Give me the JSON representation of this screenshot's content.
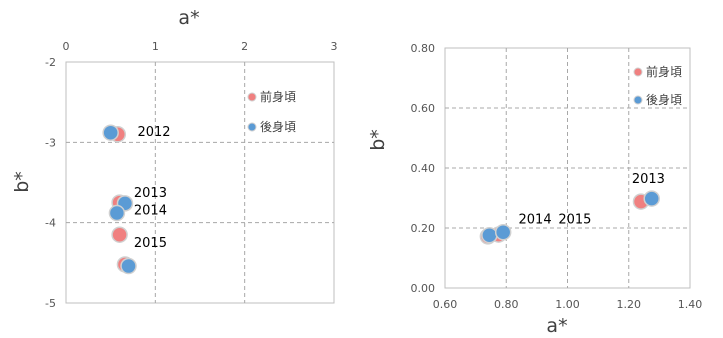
{
  "chart_data": [
    {
      "type": "scatter",
      "xlabel": "a*",
      "ylabel": "b*",
      "xlim": [
        0,
        3
      ],
      "ylim": [
        -5,
        -2
      ],
      "x_ticks": [
        "0",
        "1",
        "2",
        "3"
      ],
      "y_ticks": [
        "-2",
        "-3",
        "-4",
        "-5"
      ],
      "x_axis_position": "top",
      "grid": true,
      "legend_position": "top-right",
      "series": [
        {
          "name": "前身頃",
          "color": "#f08080",
          "points": [
            {
              "x": 0.58,
              "y": -2.9
            },
            {
              "x": 0.6,
              "y": -3.75
            },
            {
              "x": 0.6,
              "y": -4.15
            },
            {
              "x": 0.66,
              "y": -4.52
            }
          ]
        },
        {
          "name": "後身頃",
          "color": "#5b9bd5",
          "points": [
            {
              "x": 0.5,
              "y": -2.88
            },
            {
              "x": 0.66,
              "y": -3.76
            },
            {
              "x": 0.57,
              "y": -3.88
            },
            {
              "x": 0.7,
              "y": -4.54
            }
          ]
        }
      ],
      "annotations": [
        {
          "text": "2012",
          "x": 0.8,
          "y": -2.92
        },
        {
          "text": "2013",
          "x": 0.76,
          "y": -3.68
        },
        {
          "text": "2014",
          "x": 0.76,
          "y": -3.9
        },
        {
          "text": "2015",
          "x": 0.76,
          "y": -4.3
        }
      ]
    },
    {
      "type": "scatter",
      "xlabel": "a*",
      "ylabel": "b*",
      "xlim": [
        0.6,
        1.4
      ],
      "ylim": [
        0,
        0.8
      ],
      "x_ticks": [
        "0.60",
        "0.80",
        "1.00",
        "1.20",
        "1.40"
      ],
      "y_ticks": [
        "0.00",
        "0.20",
        "0.40",
        "0.60",
        "0.80"
      ],
      "grid": true,
      "legend_position": "top-right",
      "series": [
        {
          "name": "前身頃",
          "color": "#f08080",
          "points": [
            {
              "x": 0.74,
              "y": 0.172
            },
            {
              "x": 0.775,
              "y": 0.178
            },
            {
              "x": 1.24,
              "y": 0.288
            }
          ]
        },
        {
          "name": "後身頃",
          "color": "#5b9bd5",
          "points": [
            {
              "x": 0.745,
              "y": 0.176
            },
            {
              "x": 0.79,
              "y": 0.186
            },
            {
              "x": 1.275,
              "y": 0.298
            }
          ]
        }
      ],
      "annotations": [
        {
          "text": "2014",
          "x": 0.84,
          "y": 0.215
        },
        {
          "text": "2015",
          "x": 0.97,
          "y": 0.215
        },
        {
          "text": "2013",
          "x": 1.21,
          "y": 0.35
        }
      ]
    }
  ]
}
